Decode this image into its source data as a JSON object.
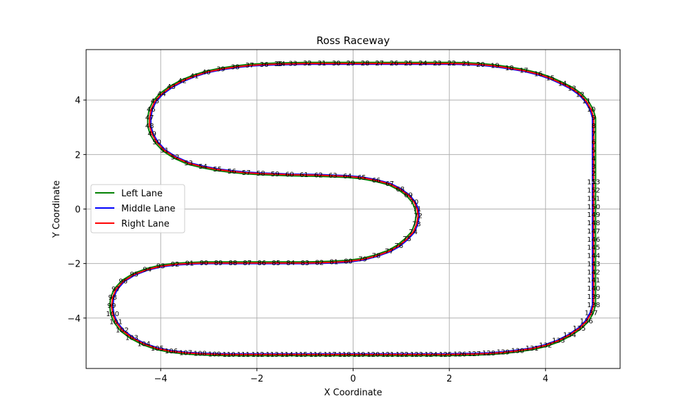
{
  "chart_data": {
    "type": "line",
    "title": "Ross Raceway",
    "xlabel": "X Coordinate",
    "ylabel": "Y Coordinate",
    "xlim": [
      -5.55,
      5.55
    ],
    "ylim": [
      -5.85,
      5.85
    ],
    "xticks": [
      -4,
      -2,
      0,
      2,
      4
    ],
    "yticks": [
      -4,
      -2,
      0,
      2,
      4
    ],
    "grid": true,
    "legend_position": "center-left",
    "series": [
      {
        "name": "Left Lane",
        "color": "#008000"
      },
      {
        "name": "Middle Lane",
        "color": "#0000ff"
      },
      {
        "name": "Right Lane",
        "color": "#ff0000"
      }
    ],
    "centerline": [
      [
        5.0,
        1.0
      ],
      [
        5.0,
        1.3
      ],
      [
        5.0,
        1.55
      ],
      [
        5.0,
        1.85
      ],
      [
        5.0,
        2.15
      ],
      [
        5.0,
        2.45
      ],
      [
        5.0,
        2.75
      ],
      [
        5.0,
        3.05
      ],
      [
        5.0,
        3.35
      ],
      [
        4.95,
        3.65
      ],
      [
        4.85,
        3.95
      ],
      [
        4.72,
        4.2
      ],
      [
        4.55,
        4.42
      ],
      [
        4.35,
        4.6
      ],
      [
        4.1,
        4.8
      ],
      [
        3.85,
        4.95
      ],
      [
        3.55,
        5.08
      ],
      [
        3.25,
        5.17
      ],
      [
        2.95,
        5.25
      ],
      [
        2.65,
        5.3
      ],
      [
        2.35,
        5.33
      ],
      [
        2.05,
        5.34
      ],
      [
        1.75,
        5.34
      ],
      [
        1.45,
        5.34
      ],
      [
        1.15,
        5.34
      ],
      [
        0.85,
        5.34
      ],
      [
        0.55,
        5.34
      ],
      [
        0.25,
        5.34
      ],
      [
        -0.05,
        5.34
      ],
      [
        -0.35,
        5.34
      ],
      [
        -0.65,
        5.34
      ],
      [
        -0.95,
        5.34
      ],
      [
        -1.25,
        5.33
      ],
      [
        -1.5,
        5.32
      ],
      [
        -1.55,
        5.32
      ],
      [
        -1.85,
        5.3
      ],
      [
        -2.15,
        5.27
      ],
      [
        -2.45,
        5.21
      ],
      [
        -2.75,
        5.13
      ],
      [
        -3.05,
        5.02
      ],
      [
        -3.3,
        4.88
      ],
      [
        -3.55,
        4.7
      ],
      [
        -3.78,
        4.48
      ],
      [
        -3.98,
        4.22
      ],
      [
        -4.12,
        3.95
      ],
      [
        -4.2,
        3.65
      ],
      [
        -4.23,
        3.35
      ],
      [
        -4.23,
        3.05
      ],
      [
        -4.18,
        2.75
      ],
      [
        -4.08,
        2.45
      ],
      [
        -3.92,
        2.15
      ],
      [
        -3.7,
        1.9
      ],
      [
        -3.42,
        1.68
      ],
      [
        -3.12,
        1.55
      ],
      [
        -2.82,
        1.45
      ],
      [
        -2.52,
        1.38
      ],
      [
        -2.22,
        1.33
      ],
      [
        -1.92,
        1.3
      ],
      [
        -1.62,
        1.28
      ],
      [
        -1.32,
        1.26
      ],
      [
        -1.02,
        1.25
      ],
      [
        -0.72,
        1.24
      ],
      [
        -0.42,
        1.22
      ],
      [
        -0.12,
        1.2
      ],
      [
        0.18,
        1.15
      ],
      [
        0.48,
        1.05
      ],
      [
        0.76,
        0.92
      ],
      [
        0.98,
        0.72
      ],
      [
        1.15,
        0.5
      ],
      [
        1.27,
        0.25
      ],
      [
        1.33,
        0.0
      ],
      [
        1.35,
        -0.25
      ],
      [
        1.32,
        -0.55
      ],
      [
        1.25,
        -0.85
      ],
      [
        1.12,
        -1.1
      ],
      [
        0.95,
        -1.35
      ],
      [
        0.75,
        -1.55
      ],
      [
        0.48,
        -1.72
      ],
      [
        0.2,
        -1.85
      ],
      [
        -0.1,
        -1.92
      ],
      [
        -0.4,
        -1.95
      ],
      [
        -0.7,
        -1.97
      ],
      [
        -1.0,
        -1.98
      ],
      [
        -1.3,
        -1.98
      ],
      [
        -1.6,
        -1.98
      ],
      [
        -1.9,
        -1.98
      ],
      [
        -2.2,
        -1.98
      ],
      [
        -2.5,
        -1.98
      ],
      [
        -2.8,
        -1.98
      ],
      [
        -3.1,
        -1.98
      ],
      [
        -3.4,
        -2.0
      ],
      [
        -3.7,
        -2.03
      ],
      [
        -4.0,
        -2.1
      ],
      [
        -4.28,
        -2.22
      ],
      [
        -4.55,
        -2.4
      ],
      [
        -4.78,
        -2.65
      ],
      [
        -4.93,
        -2.95
      ],
      [
        -5.0,
        -3.25
      ],
      [
        -5.02,
        -3.55
      ],
      [
        -5.0,
        -3.85
      ],
      [
        -4.93,
        -4.15
      ],
      [
        -4.8,
        -4.45
      ],
      [
        -4.6,
        -4.72
      ],
      [
        -4.35,
        -4.95
      ],
      [
        -4.07,
        -5.12
      ],
      [
        -3.78,
        -5.22
      ],
      [
        -3.48,
        -5.28
      ],
      [
        -3.18,
        -5.31
      ],
      [
        -2.88,
        -5.33
      ],
      [
        -2.58,
        -5.34
      ],
      [
        -2.28,
        -5.34
      ],
      [
        -1.98,
        -5.34
      ],
      [
        -1.68,
        -5.34
      ],
      [
        -1.38,
        -5.34
      ],
      [
        -1.08,
        -5.34
      ],
      [
        -0.78,
        -5.34
      ],
      [
        -0.48,
        -5.34
      ],
      [
        -0.18,
        -5.34
      ],
      [
        0.12,
        -5.34
      ],
      [
        0.42,
        -5.34
      ],
      [
        0.72,
        -5.34
      ],
      [
        1.02,
        -5.34
      ],
      [
        1.32,
        -5.34
      ],
      [
        1.62,
        -5.34
      ],
      [
        1.92,
        -5.34
      ],
      [
        2.22,
        -5.33
      ],
      [
        2.52,
        -5.32
      ],
      [
        2.82,
        -5.3
      ],
      [
        3.12,
        -5.26
      ],
      [
        3.42,
        -5.2
      ],
      [
        3.72,
        -5.12
      ],
      [
        4.0,
        -5.0
      ],
      [
        4.27,
        -4.83
      ],
      [
        4.5,
        -4.62
      ],
      [
        4.7,
        -4.38
      ],
      [
        4.85,
        -4.12
      ],
      [
        4.95,
        -3.82
      ],
      [
        5.0,
        -3.52
      ],
      [
        5.0,
        -3.22
      ],
      [
        5.0,
        -2.92
      ],
      [
        5.0,
        -2.62
      ],
      [
        5.0,
        -2.32
      ],
      [
        5.0,
        -2.02
      ],
      [
        5.0,
        -1.72
      ],
      [
        5.0,
        -1.42
      ],
      [
        5.0,
        -1.12
      ],
      [
        5.0,
        -0.82
      ],
      [
        5.0,
        -0.52
      ],
      [
        5.0,
        -0.22
      ],
      [
        5.0,
        0.08
      ],
      [
        5.0,
        0.38
      ],
      [
        5.0,
        0.68
      ],
      [
        5.0,
        0.98
      ]
    ]
  }
}
